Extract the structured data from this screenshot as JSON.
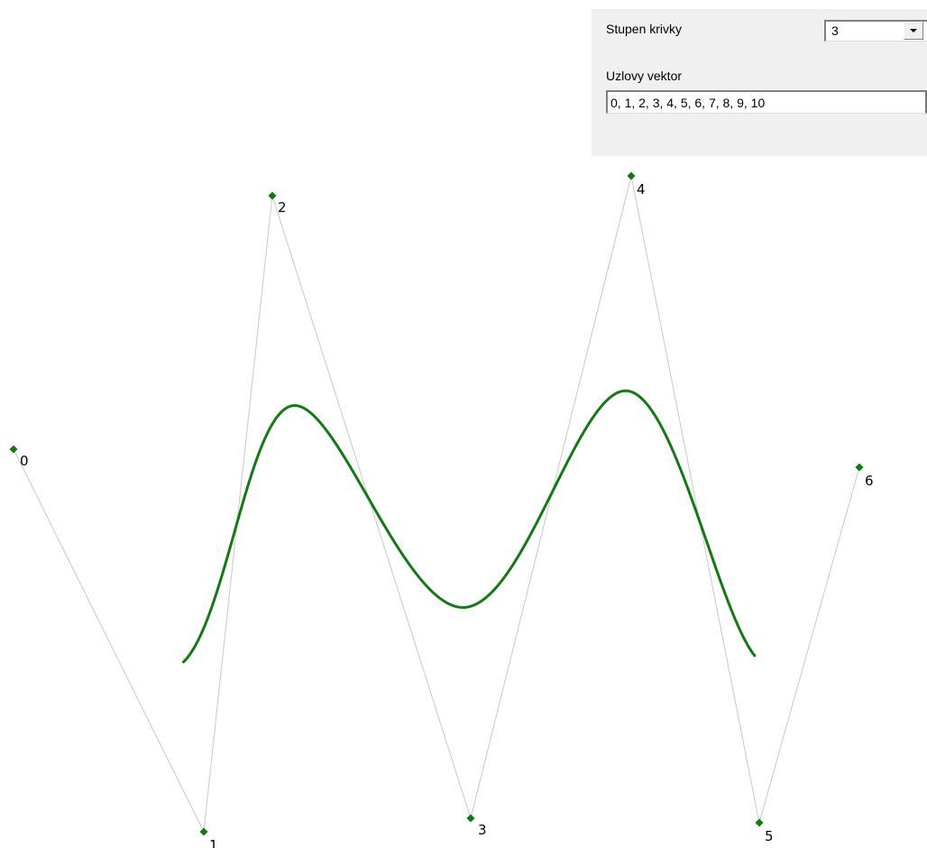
{
  "panel": {
    "degree_label": "Stupen krivky",
    "degree_value": "3",
    "knot_label": "Uzlovy vektor",
    "knot_value": "0, 1, 2, 3, 4, 5, 6, 7, 8, 9, 10"
  },
  "colors": {
    "curve": "#127a12",
    "control_point": "#0f7a0f",
    "control_polygon": "#c8c8c8",
    "panel_background": "#f0f0f0"
  },
  "control_points": [
    {
      "label": "0"
    },
    {
      "label": "1"
    },
    {
      "label": "2"
    },
    {
      "label": "3"
    },
    {
      "label": "4"
    },
    {
      "label": "5"
    },
    {
      "label": "6"
    }
  ]
}
